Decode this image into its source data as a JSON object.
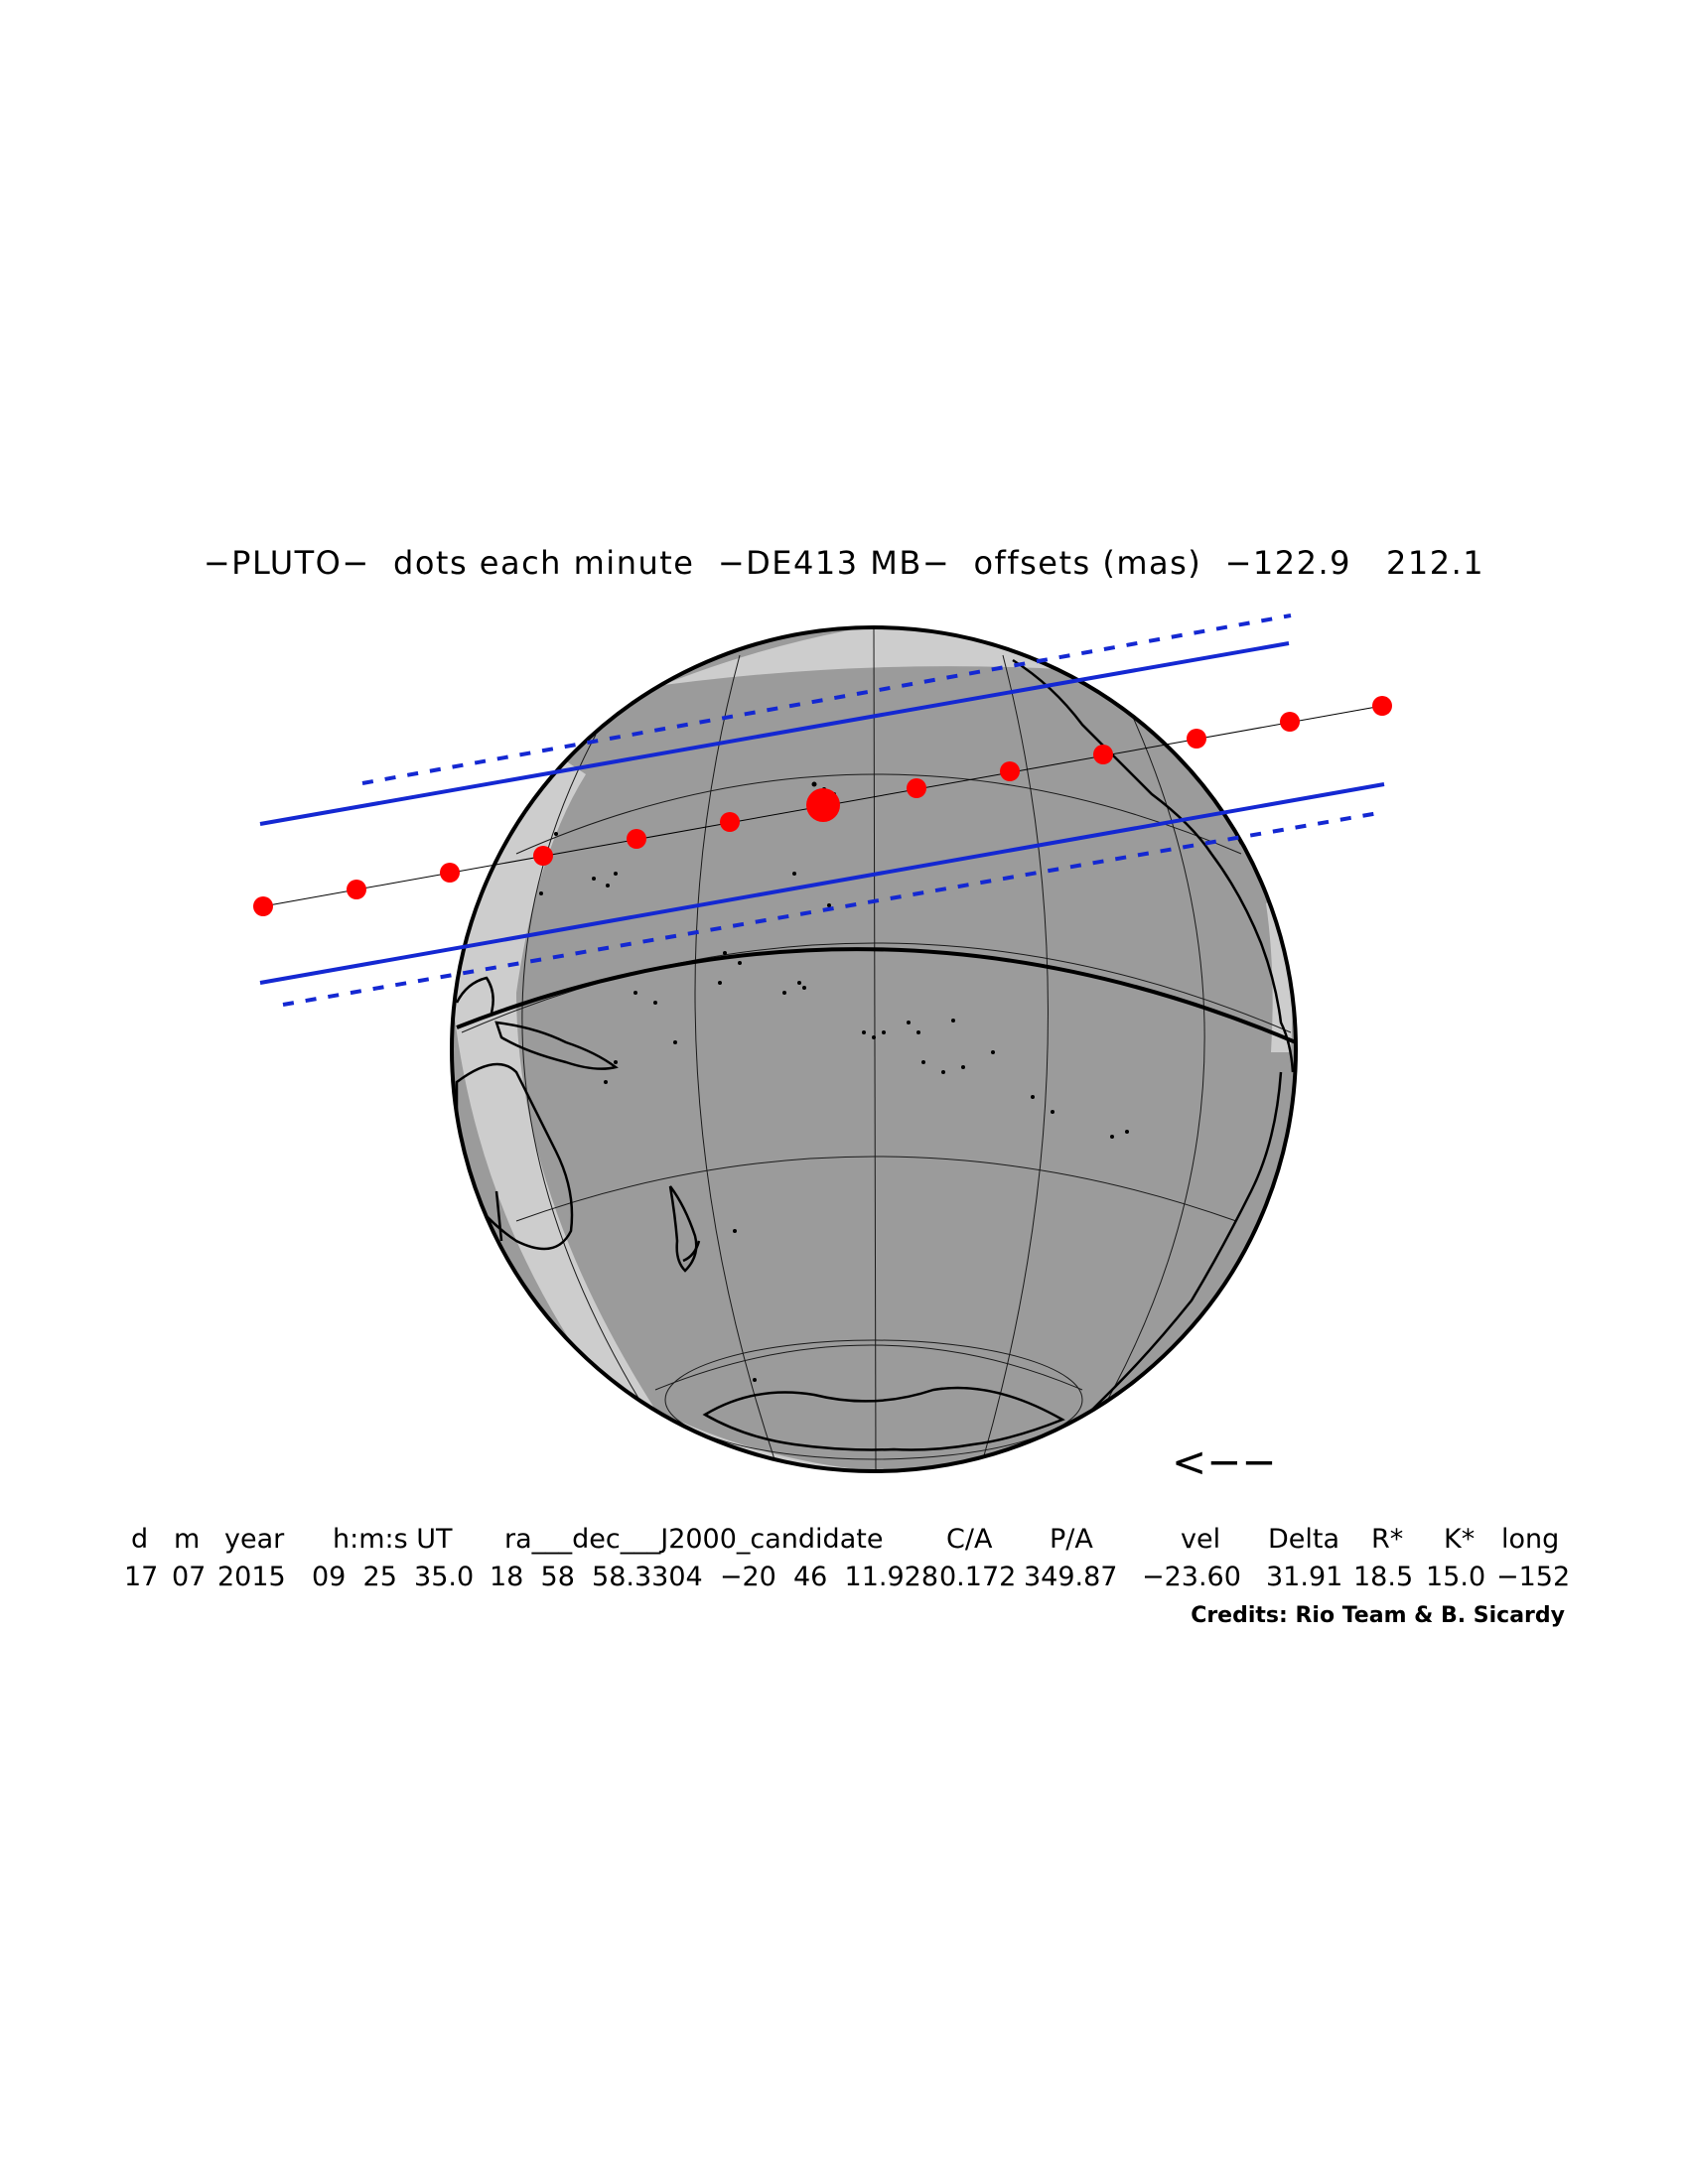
{
  "title": "−PLUTO−  dots each minute  −DE413 MB−  offsets (mas)  −122.9   212.1",
  "direction_arrow": "<−−",
  "table": {
    "headers": [
      "d",
      "m",
      "year",
      "h:m:s UT",
      "ra___dec___J2000_candidate",
      "C/A",
      "P/A",
      "vel",
      "Delta",
      "R*",
      "K*",
      "long"
    ],
    "values": [
      "17",
      "07",
      "2015",
      "09  25  35.0",
      "18  58  58.3304  −20  46  11.928",
      "0.172",
      "349.87",
      "−23.60",
      "31.91",
      "18.5",
      "15.0",
      "−152"
    ]
  },
  "credits": "Credits: Rio Team & B. Sicardy",
  "colors": {
    "night_side": "#9b9b9b",
    "day_side": "#cdcdcd",
    "shadow_limits": "#1428d2",
    "path_dots": "#ff0000",
    "coastlines": "#000000"
  },
  "icons": [
    "globe-map",
    "shadow-path-dot",
    "direction-arrow"
  ]
}
